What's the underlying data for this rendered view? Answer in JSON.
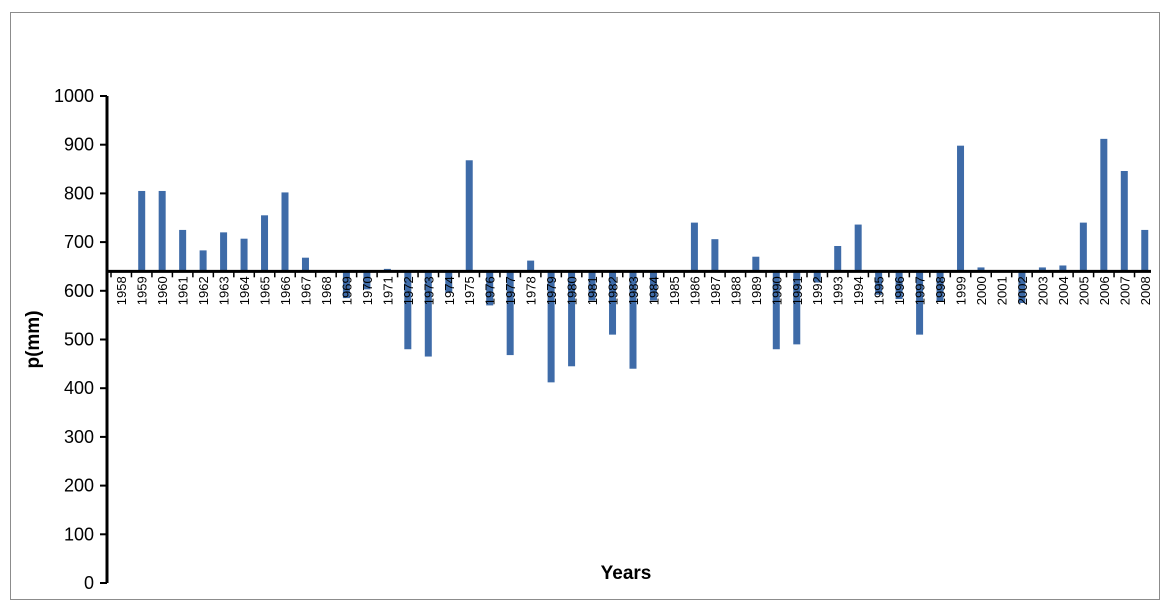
{
  "chart_data": {
    "type": "bar",
    "title": "",
    "xlabel": "Years",
    "ylabel": "p(mm)",
    "ylim": [
      0,
      1000
    ],
    "yticks": [
      0,
      100,
      200,
      300,
      400,
      500,
      600,
      700,
      800,
      900,
      1000
    ],
    "baseline": 640,
    "bar_color": "#3E6BA8",
    "categories": [
      "1958",
      "1959",
      "1960",
      "1961",
      "1962",
      "1963",
      "1964",
      "1965",
      "1966",
      "1967",
      "1968",
      "1969",
      "1970",
      "1971",
      "1972",
      "1973",
      "1974",
      "1975",
      "1976",
      "1977",
      "1978",
      "1979",
      "1980",
      "1981",
      "1982",
      "1983",
      "1984",
      "1985",
      "1986",
      "1987",
      "1988",
      "1989",
      "1990",
      "1991",
      "1992",
      "1993",
      "1994",
      "1995",
      "1996",
      "1997",
      "1998",
      "1999",
      "2000",
      "2001",
      "2002",
      "2003",
      "2004",
      "2005",
      "2006",
      "2007",
      "2008"
    ],
    "values": [
      640,
      805,
      805,
      725,
      683,
      720,
      707,
      755,
      802,
      668,
      640,
      585,
      603,
      645,
      480,
      465,
      596,
      868,
      570,
      468,
      662,
      412,
      445,
      580,
      510,
      440,
      580,
      642,
      740,
      706,
      642,
      670,
      480,
      490,
      617,
      692,
      736,
      592,
      583,
      510,
      578,
      898,
      648,
      640,
      575,
      648,
      652,
      740,
      912,
      846,
      725
    ],
    "grid": false,
    "legend": "none"
  }
}
